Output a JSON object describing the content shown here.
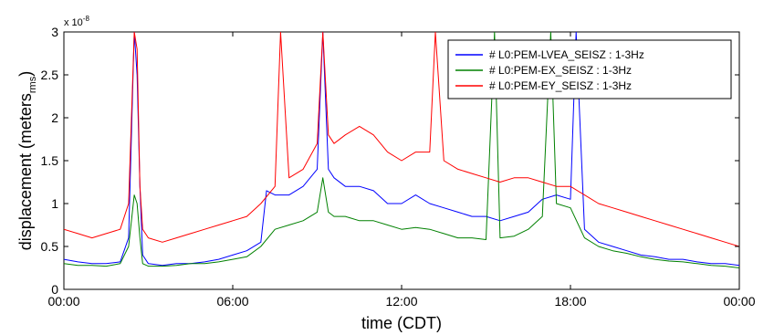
{
  "chart_data": {
    "type": "line",
    "title": "",
    "xlabel": "time (CDT)",
    "ylabel_main": "displacement (meters",
    "ylabel_sub": "rms",
    "ylabel_close": ")",
    "y_exponent_label": "x 10",
    "y_exponent_power": "-8",
    "xlim": [
      0,
      24
    ],
    "ylim": [
      0,
      3
    ],
    "xticks": [
      {
        "value": 0,
        "label": "00:00"
      },
      {
        "value": 6,
        "label": "06:00"
      },
      {
        "value": 12,
        "label": "12:00"
      },
      {
        "value": 18,
        "label": "18:00"
      },
      {
        "value": 24,
        "label": "00:00"
      }
    ],
    "yticks": [
      {
        "value": 0,
        "label": "0"
      },
      {
        "value": 0.5,
        "label": "0.5"
      },
      {
        "value": 1,
        "label": "1"
      },
      {
        "value": 1.5,
        "label": "1.5"
      },
      {
        "value": 2,
        "label": "2"
      },
      {
        "value": 2.5,
        "label": "2.5"
      },
      {
        "value": 3,
        "label": "3"
      }
    ],
    "grid": false,
    "legend_position": "top-right",
    "series": [
      {
        "name": "# L0:PEM-LVEA_SEISZ : 1-3Hz",
        "color": "#0000ff",
        "x": [
          0,
          0.5,
          1,
          1.5,
          2,
          2.3,
          2.5,
          2.6,
          2.7,
          2.8,
          3,
          3.5,
          4,
          4.5,
          5,
          5.5,
          6,
          6.5,
          7,
          7.2,
          7.5,
          8,
          8.5,
          9,
          9.2,
          9.4,
          9.6,
          10,
          10.5,
          11,
          11.5,
          12,
          12.5,
          13,
          13.5,
          14,
          14.5,
          15,
          15.5,
          16,
          16.5,
          17,
          17.5,
          18,
          18.2,
          18.5,
          19,
          19.5,
          20,
          20.5,
          21,
          21.5,
          22,
          22.5,
          23,
          23.5,
          24
        ],
        "y": [
          0.35,
          0.32,
          0.3,
          0.3,
          0.32,
          0.6,
          3.0,
          2.5,
          1.2,
          0.4,
          0.3,
          0.28,
          0.3,
          0.3,
          0.32,
          0.35,
          0.4,
          0.45,
          0.55,
          1.15,
          1.1,
          1.1,
          1.2,
          1.4,
          3.0,
          1.4,
          1.3,
          1.2,
          1.2,
          1.15,
          1.0,
          1.0,
          1.1,
          1.0,
          0.95,
          0.9,
          0.85,
          0.85,
          0.8,
          0.85,
          0.9,
          1.05,
          1.1,
          1.05,
          3.0,
          0.7,
          0.55,
          0.5,
          0.45,
          0.4,
          0.38,
          0.35,
          0.35,
          0.32,
          0.3,
          0.3,
          0.28
        ]
      },
      {
        "name": "# L0:PEM-EX_SEISZ : 1-3Hz",
        "color": "#008000",
        "x": [
          0,
          0.5,
          1,
          1.5,
          2,
          2.3,
          2.5,
          2.6,
          2.7,
          2.8,
          3,
          3.5,
          4,
          4.5,
          5,
          5.5,
          6,
          6.5,
          7,
          7.5,
          8,
          8.5,
          9,
          9.2,
          9.4,
          9.6,
          10,
          10.5,
          11,
          11.5,
          12,
          12.5,
          13,
          13.5,
          14,
          14.5,
          15,
          15.3,
          15.5,
          16,
          16.5,
          17,
          17.3,
          17.5,
          18,
          18.5,
          19,
          19.5,
          20,
          20.5,
          21,
          21.5,
          22,
          22.5,
          23,
          23.5,
          24
        ],
        "y": [
          0.3,
          0.28,
          0.28,
          0.27,
          0.3,
          0.5,
          1.1,
          1.0,
          0.6,
          0.3,
          0.27,
          0.27,
          0.28,
          0.3,
          0.3,
          0.32,
          0.35,
          0.38,
          0.5,
          0.7,
          0.75,
          0.8,
          0.9,
          1.3,
          0.9,
          0.85,
          0.85,
          0.8,
          0.8,
          0.75,
          0.7,
          0.72,
          0.7,
          0.65,
          0.6,
          0.6,
          0.58,
          3.0,
          0.6,
          0.62,
          0.7,
          0.85,
          3.0,
          1.0,
          0.95,
          0.6,
          0.5,
          0.45,
          0.42,
          0.38,
          0.35,
          0.33,
          0.32,
          0.3,
          0.28,
          0.27,
          0.25
        ]
      },
      {
        "name": "# L0:PEM-EY_SEISZ : 1-3Hz",
        "color": "#ff0000",
        "x": [
          0,
          0.5,
          1,
          1.5,
          2,
          2.3,
          2.5,
          2.6,
          2.7,
          2.8,
          3,
          3.5,
          4,
          4.5,
          5,
          5.5,
          6,
          6.5,
          7,
          7.5,
          7.7,
          8,
          8.5,
          9,
          9.2,
          9.4,
          9.6,
          10,
          10.5,
          11,
          11.5,
          12,
          12.5,
          13,
          13.2,
          13.5,
          14,
          14.5,
          15,
          15.5,
          16,
          16.5,
          17,
          17.5,
          18,
          18.5,
          19,
          19.5,
          20,
          20.5,
          21,
          21.5,
          22,
          22.5,
          23,
          23.5,
          24
        ],
        "y": [
          0.7,
          0.65,
          0.6,
          0.65,
          0.7,
          1.0,
          3.0,
          2.8,
          1.2,
          0.7,
          0.6,
          0.55,
          0.6,
          0.65,
          0.7,
          0.75,
          0.8,
          0.85,
          1.0,
          1.2,
          3.0,
          1.3,
          1.4,
          1.7,
          3.0,
          1.8,
          1.7,
          1.8,
          1.9,
          1.8,
          1.6,
          1.5,
          1.6,
          1.6,
          3.0,
          1.5,
          1.4,
          1.35,
          1.3,
          1.25,
          1.3,
          1.3,
          1.25,
          1.2,
          1.2,
          1.1,
          1.0,
          0.95,
          0.9,
          0.85,
          0.8,
          0.75,
          0.7,
          0.65,
          0.6,
          0.55,
          0.5
        ]
      }
    ]
  }
}
